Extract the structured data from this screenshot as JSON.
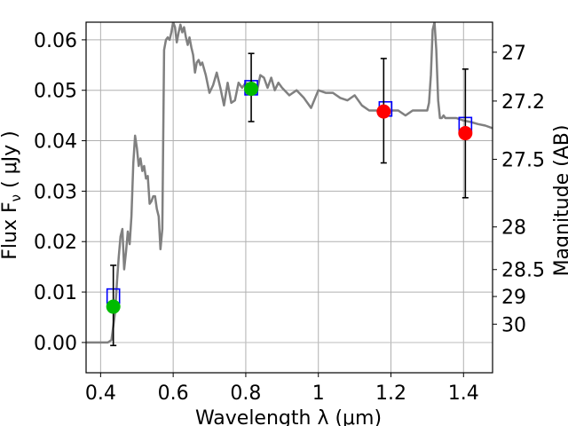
{
  "chart_data": {
    "type": "line",
    "xlabel": "Wavelength  λ (μm)",
    "ylabel": "Flux  F_ν  ( μJy )",
    "ylabel_parts": {
      "main": "Flux  F",
      "sub": "ν",
      "tail": "  ( μJy )"
    },
    "y2label": "Magnitude (AB)",
    "xlim": [
      0.36,
      1.48
    ],
    "ylim": [
      -0.006,
      0.0635
    ],
    "grid": true,
    "x_ticks": [
      {
        "value": 0.4,
        "label": "0.4"
      },
      {
        "value": 0.6,
        "label": "0.6"
      },
      {
        "value": 0.8,
        "label": "0.8"
      },
      {
        "value": 1.0,
        "label": "1"
      },
      {
        "value": 1.2,
        "label": "1.2"
      },
      {
        "value": 1.4,
        "label": "1.4"
      }
    ],
    "y_ticks": [
      {
        "value": 0.0,
        "label": "0.00"
      },
      {
        "value": 0.01,
        "label": "0.01"
      },
      {
        "value": 0.02,
        "label": "0.02"
      },
      {
        "value": 0.03,
        "label": "0.03"
      },
      {
        "value": 0.04,
        "label": "0.04"
      },
      {
        "value": 0.05,
        "label": "0.05"
      },
      {
        "value": 0.06,
        "label": "0.06"
      }
    ],
    "y2_ticks": [
      {
        "mag": 27,
        "label": "27"
      },
      {
        "mag": 27.2,
        "label": "27.2"
      },
      {
        "mag": 27.5,
        "label": "27.5"
      },
      {
        "mag": 28,
        "label": "28"
      },
      {
        "mag": 28.5,
        "label": "28.5"
      },
      {
        "mag": 29,
        "label": "29"
      },
      {
        "mag": 30,
        "label": "30"
      }
    ],
    "model_sed": {
      "color": "#808080",
      "x": [
        0.36,
        0.42,
        0.43,
        0.44,
        0.445,
        0.45,
        0.455,
        0.46,
        0.465,
        0.47,
        0.475,
        0.48,
        0.485,
        0.49,
        0.495,
        0.5,
        0.505,
        0.51,
        0.515,
        0.52,
        0.525,
        0.53,
        0.535,
        0.54,
        0.545,
        0.55,
        0.555,
        0.56,
        0.565,
        0.57,
        0.575,
        0.58,
        0.585,
        0.59,
        0.595,
        0.6,
        0.605,
        0.61,
        0.615,
        0.62,
        0.625,
        0.63,
        0.635,
        0.64,
        0.645,
        0.65,
        0.655,
        0.66,
        0.665,
        0.67,
        0.675,
        0.68,
        0.69,
        0.7,
        0.71,
        0.72,
        0.73,
        0.74,
        0.75,
        0.76,
        0.77,
        0.78,
        0.79,
        0.8,
        0.81,
        0.82,
        0.83,
        0.84,
        0.85,
        0.86,
        0.87,
        0.88,
        0.89,
        0.9,
        0.92,
        0.94,
        0.96,
        0.98,
        1.0,
        1.02,
        1.04,
        1.06,
        1.08,
        1.1,
        1.12,
        1.14,
        1.16,
        1.18,
        1.2,
        1.22,
        1.24,
        1.26,
        1.28,
        1.3,
        1.305,
        1.31,
        1.315,
        1.32,
        1.325,
        1.33,
        1.335,
        1.34,
        1.345,
        1.35,
        1.36,
        1.38,
        1.4,
        1.42,
        1.44,
        1.46,
        1.48
      ],
      "y": [
        0.0,
        0.0,
        0.0005,
        0.006,
        0.012,
        0.017,
        0.021,
        0.0225,
        0.0145,
        0.018,
        0.022,
        0.0195,
        0.025,
        0.0355,
        0.041,
        0.0385,
        0.035,
        0.0365,
        0.034,
        0.035,
        0.0325,
        0.033,
        0.0275,
        0.028,
        0.029,
        0.029,
        0.0265,
        0.025,
        0.0185,
        0.0225,
        0.058,
        0.06,
        0.0605,
        0.06,
        0.0615,
        0.065,
        0.0625,
        0.0595,
        0.0615,
        0.063,
        0.0615,
        0.0625,
        0.0605,
        0.059,
        0.0605,
        0.0585,
        0.057,
        0.0535,
        0.0555,
        0.056,
        0.055,
        0.0555,
        0.053,
        0.0495,
        0.051,
        0.0535,
        0.0505,
        0.047,
        0.0515,
        0.0475,
        0.048,
        0.0515,
        0.0505,
        0.0515,
        0.051,
        0.05,
        0.0495,
        0.053,
        0.0525,
        0.0505,
        0.0525,
        0.05,
        0.0515,
        0.0505,
        0.049,
        0.05,
        0.0485,
        0.0465,
        0.05,
        0.0495,
        0.0495,
        0.0485,
        0.048,
        0.049,
        0.047,
        0.046,
        0.046,
        0.0455,
        0.046,
        0.046,
        0.045,
        0.046,
        0.046,
        0.046,
        0.0475,
        0.053,
        0.062,
        0.064,
        0.058,
        0.048,
        0.0445,
        0.0445,
        0.045,
        0.0445,
        0.0445,
        0.0445,
        0.044,
        0.0437,
        0.0433,
        0.043,
        0.0425
      ]
    },
    "model_photometry": {
      "color": "#0000ff",
      "marker": "open-square",
      "points": [
        {
          "x": 0.435,
          "y": 0.0092
        },
        {
          "x": 0.815,
          "y": 0.0505
        },
        {
          "x": 1.185,
          "y": 0.0463
        },
        {
          "x": 1.405,
          "y": 0.0432
        }
      ]
    },
    "observed_detections": {
      "color": "#00bb00",
      "marker": "filled-circle",
      "points": [
        {
          "x": 0.435,
          "y": 0.0071,
          "yerr_low": 0.0077,
          "yerr_high": 0.0082
        },
        {
          "x": 0.815,
          "y": 0.0503,
          "yerr_low": 0.0065,
          "yerr_high": 0.007
        }
      ]
    },
    "observed_other": {
      "color": "#ff0000",
      "marker": "filled-circle",
      "points": [
        {
          "x": 1.18,
          "y": 0.0458,
          "yerr_low": 0.0102,
          "yerr_high": 0.0105
        },
        {
          "x": 1.405,
          "y": 0.0415,
          "yerr_low": 0.0128,
          "yerr_high": 0.0127
        }
      ]
    }
  }
}
